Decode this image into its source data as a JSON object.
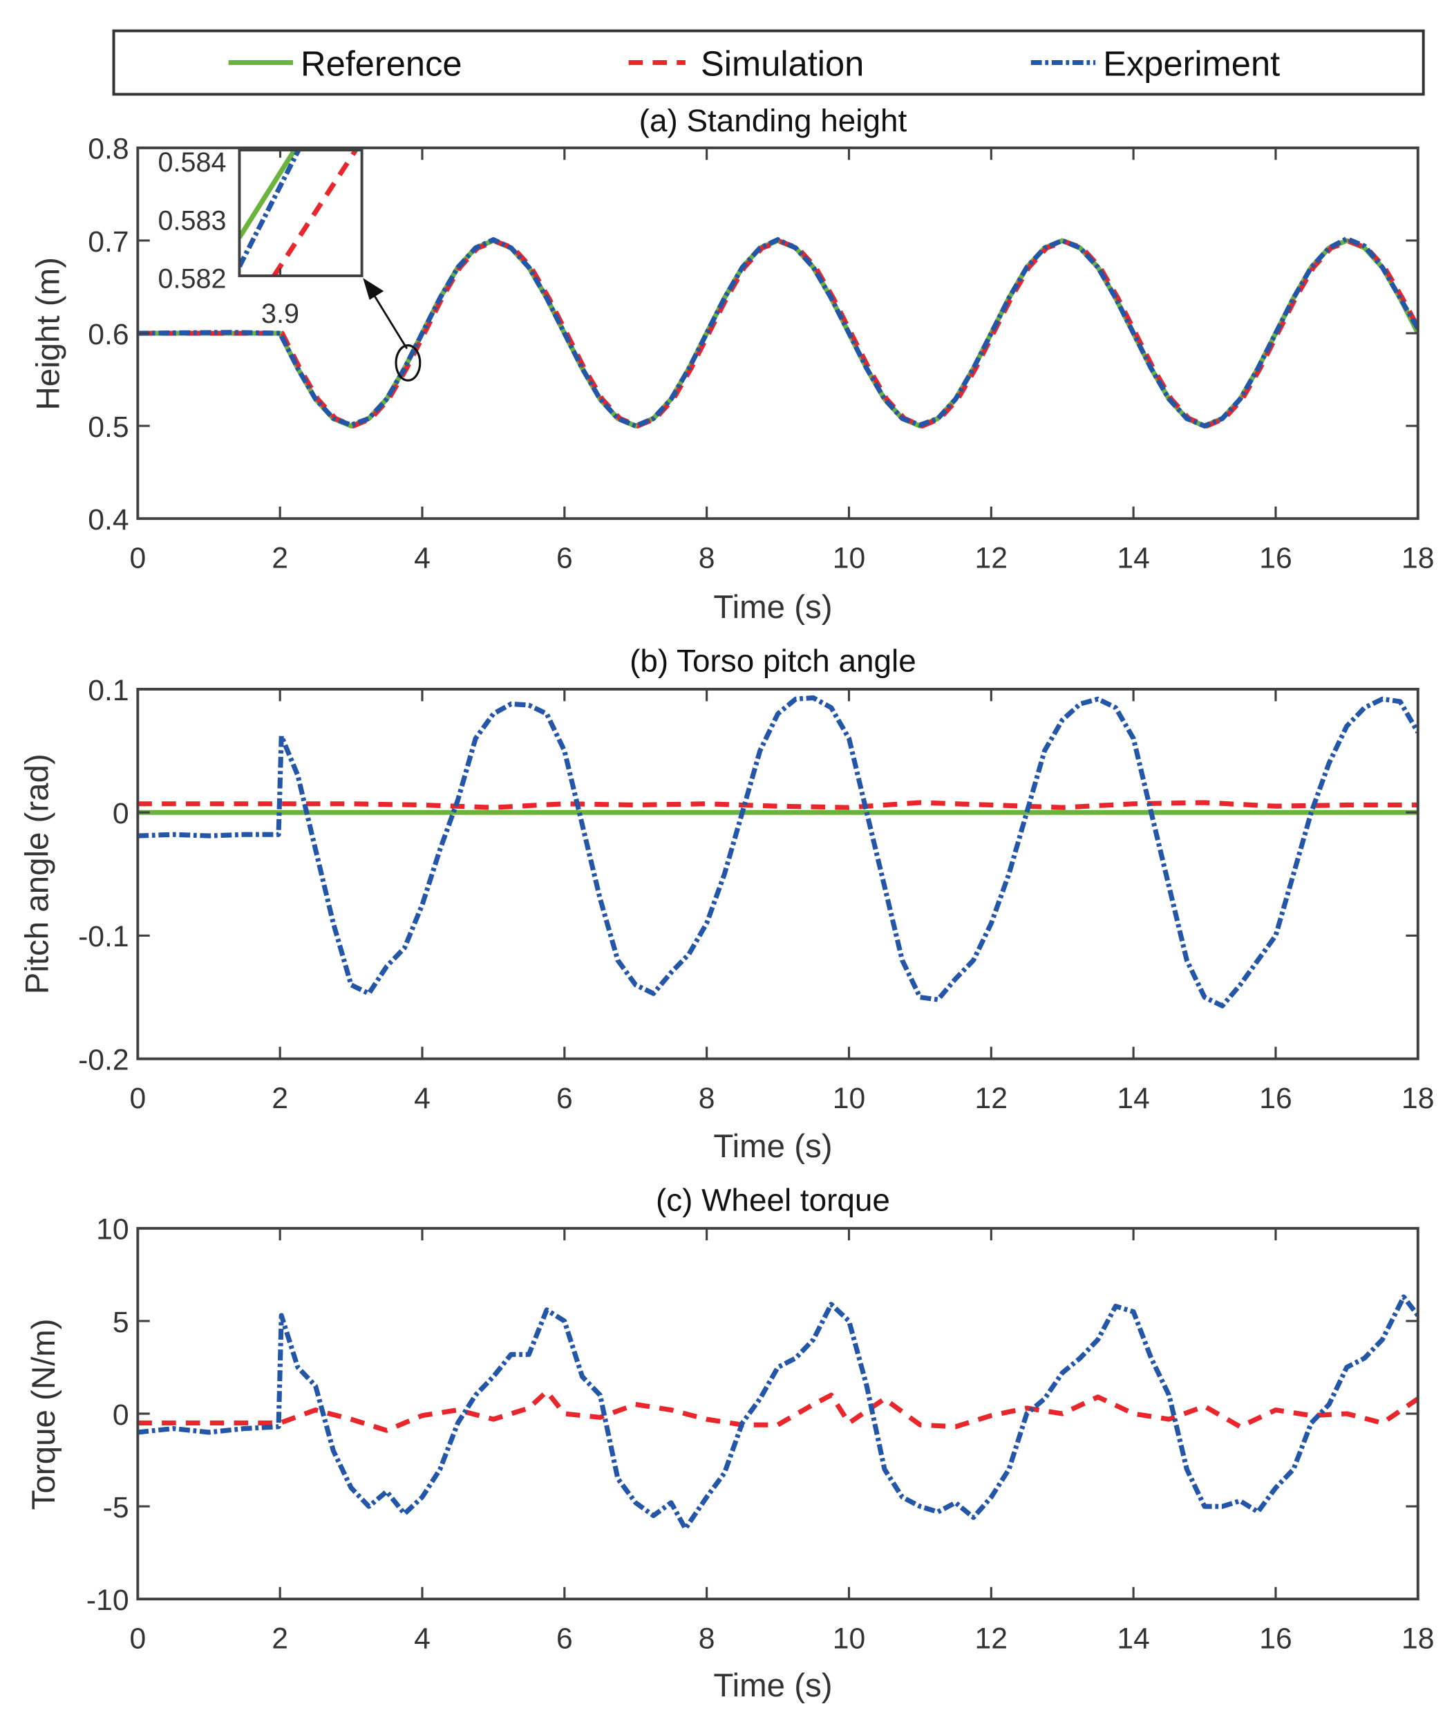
{
  "legend": {
    "items": [
      {
        "label": "Reference",
        "color": "#6ab43e",
        "style": "solid"
      },
      {
        "label": "Simulation",
        "color": "#e8262b",
        "style": "dashed"
      },
      {
        "label": "Experiment",
        "color": "#2456a8",
        "style": "dashdot"
      }
    ]
  },
  "chart_data": [
    {
      "type": "line",
      "title": "(a) Standing height",
      "xlabel": "Time (s)",
      "ylabel": "Height (m)",
      "xlim": [
        0,
        18
      ],
      "ylim": [
        0.4,
        0.8
      ],
      "xticks": [
        "0",
        "2",
        "4",
        "6",
        "8",
        "10",
        "12",
        "14",
        "16",
        "18"
      ],
      "yticks": [
        "0.4",
        "0.5",
        "0.6",
        "0.7",
        "0.8"
      ],
      "series": [
        {
          "name": "Reference",
          "x_start": 2,
          "x_step": 0.25,
          "pre": [
            [
              0,
              0.6
            ],
            [
              2,
              0.6
            ]
          ],
          "y": [
            0.6,
            0.562,
            0.529,
            0.508,
            0.5,
            0.508,
            0.529,
            0.562,
            0.6,
            0.638,
            0.671,
            0.692,
            0.7,
            0.692,
            0.671,
            0.638,
            0.6,
            0.562,
            0.529,
            0.508,
            0.5,
            0.508,
            0.529,
            0.562,
            0.6,
            0.638,
            0.671,
            0.692,
            0.7,
            0.692,
            0.671,
            0.638,
            0.6,
            0.562,
            0.529,
            0.508,
            0.5,
            0.508,
            0.529,
            0.562,
            0.6,
            0.638,
            0.671,
            0.692,
            0.7,
            0.692,
            0.671,
            0.638,
            0.6,
            0.562,
            0.529,
            0.508,
            0.5,
            0.508,
            0.529,
            0.562,
            0.6,
            0.638,
            0.671,
            0.692,
            0.7,
            0.692,
            0.671,
            0.638,
            0.6
          ]
        },
        {
          "name": "Simulation",
          "x_start": 2.03,
          "x_step": 0.25,
          "pre": [
            [
              0,
              0.6
            ],
            [
              2.03,
              0.6
            ]
          ],
          "y": [
            0.6,
            0.562,
            0.529,
            0.508,
            0.5,
            0.508,
            0.529,
            0.562,
            0.6,
            0.638,
            0.671,
            0.692,
            0.699,
            0.692,
            0.671,
            0.638,
            0.6,
            0.562,
            0.529,
            0.508,
            0.5,
            0.508,
            0.529,
            0.562,
            0.6,
            0.638,
            0.671,
            0.692,
            0.699,
            0.692,
            0.671,
            0.638,
            0.6,
            0.562,
            0.529,
            0.508,
            0.5,
            0.508,
            0.529,
            0.562,
            0.6,
            0.638,
            0.671,
            0.692,
            0.699,
            0.692,
            0.671,
            0.638,
            0.6,
            0.562,
            0.529,
            0.508,
            0.5,
            0.508,
            0.529,
            0.562,
            0.6,
            0.638,
            0.671,
            0.692,
            0.699,
            0.692,
            0.671,
            0.638,
            0.602
          ]
        },
        {
          "name": "Experiment",
          "x_start": 2,
          "x_step": 0.25,
          "pre": [
            [
              0,
              0.6
            ],
            [
              1.3,
              0.601
            ],
            [
              2,
              0.6
            ]
          ],
          "y": [
            0.6,
            0.562,
            0.529,
            0.508,
            0.501,
            0.508,
            0.529,
            0.562,
            0.6,
            0.638,
            0.671,
            0.692,
            0.701,
            0.692,
            0.671,
            0.638,
            0.6,
            0.562,
            0.529,
            0.508,
            0.5,
            0.508,
            0.529,
            0.562,
            0.6,
            0.638,
            0.671,
            0.692,
            0.701,
            0.692,
            0.671,
            0.638,
            0.6,
            0.562,
            0.529,
            0.508,
            0.501,
            0.508,
            0.529,
            0.562,
            0.6,
            0.638,
            0.671,
            0.692,
            0.7,
            0.692,
            0.671,
            0.638,
            0.6,
            0.562,
            0.529,
            0.508,
            0.5,
            0.508,
            0.529,
            0.562,
            0.6,
            0.638,
            0.671,
            0.692,
            0.702,
            0.694,
            0.671,
            0.638,
            0.605
          ]
        }
      ],
      "inset": {
        "xlim": [
          3.89,
          3.92
        ],
        "ylim": [
          0.58204,
          0.5842
        ],
        "xticks": [
          "3.9"
        ],
        "yticks": [
          "0.582",
          "0.583",
          "0.584"
        ],
        "series": [
          {
            "name": "Reference",
            "x": [
              3.89,
              3.9035
            ],
            "y": [
              0.5827,
              0.5842
            ]
          },
          {
            "name": "Simulation",
            "x": [
              3.8985,
              3.9185
            ],
            "y": [
              0.58204,
              0.5842
            ]
          },
          {
            "name": "Experiment",
            "x": [
              3.89,
              3.9045
            ],
            "y": [
              0.5822,
              0.5842
            ]
          }
        ],
        "annotation": {
          "type": "arrow-from-ellipse",
          "at_x": 3.8,
          "at_y": 0.568
        }
      }
    },
    {
      "type": "line",
      "title": "(b) Torso pitch angle",
      "xlabel": "Time (s)",
      "ylabel": "Pitch angle (rad)",
      "xlim": [
        0,
        18
      ],
      "ylim": [
        -0.2,
        0.1
      ],
      "xticks": [
        "0",
        "2",
        "4",
        "6",
        "8",
        "10",
        "12",
        "14",
        "16",
        "18"
      ],
      "yticks": [
        "-0.2",
        "-0.1",
        "0",
        "0.1"
      ],
      "series": [
        {
          "name": "Reference",
          "x": [
            0,
            18
          ],
          "y": [
            0,
            0
          ]
        },
        {
          "name": "Simulation",
          "x": [
            0,
            2,
            3,
            4,
            5,
            6,
            7,
            8,
            9,
            10,
            11,
            12,
            13,
            14,
            15,
            16,
            17,
            18
          ],
          "y": [
            0.007,
            0.007,
            0.007,
            0.006,
            0.004,
            0.007,
            0.006,
            0.007,
            0.005,
            0.004,
            0.008,
            0.006,
            0.004,
            0.007,
            0.008,
            0.005,
            0.006,
            0.006
          ]
        },
        {
          "name": "Experiment",
          "x": [
            0,
            0.5,
            1,
            1.5,
            1.98,
            2.02,
            2.25,
            2.5,
            2.75,
            3,
            3.25,
            3.5,
            3.75,
            4,
            4.25,
            4.5,
            4.75,
            5,
            5.25,
            5.5,
            5.75,
            6,
            6.25,
            6.5,
            6.75,
            7,
            7.25,
            7.5,
            7.75,
            8,
            8.25,
            8.5,
            8.75,
            9,
            9.25,
            9.5,
            9.75,
            10,
            10.25,
            10.5,
            10.75,
            11,
            11.25,
            11.5,
            11.75,
            12,
            12.25,
            12.5,
            12.75,
            13,
            13.25,
            13.5,
            13.75,
            14,
            14.25,
            14.5,
            14.75,
            15,
            15.25,
            15.5,
            15.75,
            16,
            16.25,
            16.5,
            16.75,
            17,
            17.25,
            17.5,
            17.75,
            18
          ],
          "y": [
            -0.019,
            -0.018,
            -0.019,
            -0.018,
            -0.018,
            0.062,
            0.03,
            -0.03,
            -0.09,
            -0.14,
            -0.147,
            -0.125,
            -0.11,
            -0.075,
            -0.03,
            0.01,
            0.06,
            0.08,
            0.088,
            0.087,
            0.08,
            0.05,
            -0.01,
            -0.07,
            -0.12,
            -0.14,
            -0.147,
            -0.13,
            -0.115,
            -0.09,
            -0.05,
            0.0,
            0.05,
            0.08,
            0.092,
            0.093,
            0.085,
            0.06,
            0.0,
            -0.06,
            -0.12,
            -0.15,
            -0.152,
            -0.135,
            -0.12,
            -0.09,
            -0.05,
            0.0,
            0.05,
            0.075,
            0.088,
            0.092,
            0.085,
            0.06,
            0.0,
            -0.06,
            -0.12,
            -0.15,
            -0.157,
            -0.14,
            -0.12,
            -0.1,
            -0.05,
            0.0,
            0.04,
            0.07,
            0.085,
            0.092,
            0.09,
            0.065
          ]
        }
      ]
    },
    {
      "type": "line",
      "title": "(c) Wheel torque",
      "xlabel": "Time (s)",
      "ylabel": "Torque (N/m)",
      "xlim": [
        0,
        18
      ],
      "ylim": [
        -10,
        10
      ],
      "xticks": [
        "0",
        "2",
        "4",
        "6",
        "8",
        "10",
        "12",
        "14",
        "16",
        "18"
      ],
      "yticks": [
        "-10",
        "-5",
        "0",
        "5",
        "10"
      ],
      "series": [
        {
          "name": "Simulation",
          "x": [
            0,
            2,
            2.5,
            3,
            3.5,
            4,
            4.5,
            5,
            5.5,
            5.75,
            6,
            6.5,
            7,
            7.5,
            8,
            8.5,
            9,
            9.5,
            9.75,
            10,
            10.5,
            11,
            11.5,
            12,
            12.5,
            13,
            13.5,
            14,
            14.5,
            15,
            15.5,
            16,
            16.5,
            17,
            17.5,
            18
          ],
          "y": [
            -0.5,
            -0.5,
            0.2,
            -0.3,
            -0.9,
            -0.1,
            0.2,
            -0.3,
            0.3,
            1.2,
            0.0,
            -0.2,
            0.5,
            0.2,
            -0.3,
            -0.6,
            -0.6,
            0.5,
            1.0,
            -0.5,
            0.8,
            -0.6,
            -0.7,
            -0.1,
            0.3,
            0.0,
            0.9,
            0.0,
            -0.3,
            0.4,
            -0.7,
            0.2,
            -0.1,
            0.0,
            -0.5,
            0.8
          ]
        },
        {
          "name": "Experiment",
          "x": [
            0,
            0.5,
            1,
            1.5,
            1.98,
            2.02,
            2.25,
            2.5,
            2.75,
            3,
            3.25,
            3.5,
            3.75,
            4,
            4.25,
            4.5,
            4.75,
            5,
            5.25,
            5.5,
            5.75,
            6,
            6.25,
            6.5,
            6.75,
            7,
            7.25,
            7.5,
            7.7,
            8,
            8.25,
            8.5,
            8.75,
            9,
            9.25,
            9.5,
            9.75,
            10,
            10.25,
            10.5,
            10.75,
            11,
            11.25,
            11.5,
            11.75,
            12,
            12.25,
            12.5,
            12.75,
            13,
            13.25,
            13.5,
            13.75,
            14,
            14.25,
            14.5,
            14.75,
            15,
            15.25,
            15.5,
            15.75,
            16,
            16.25,
            16.5,
            16.75,
            17,
            17.25,
            17.5,
            17.8,
            18
          ],
          "y": [
            -1.0,
            -0.8,
            -1.0,
            -0.8,
            -0.7,
            5.3,
            2.5,
            1.5,
            -2.0,
            -4.0,
            -5.0,
            -4.2,
            -5.4,
            -4.5,
            -3.0,
            -0.5,
            1.0,
            2.0,
            3.2,
            3.2,
            5.6,
            5.0,
            2.0,
            1.0,
            -3.5,
            -4.8,
            -5.5,
            -4.8,
            -6.2,
            -4.5,
            -3.2,
            -0.5,
            0.8,
            2.5,
            3.0,
            4.0,
            5.9,
            5.0,
            1.5,
            -3.0,
            -4.5,
            -5.0,
            -5.3,
            -4.8,
            -5.6,
            -4.5,
            -3.0,
            0.0,
            0.8,
            2.2,
            3.0,
            4.0,
            5.8,
            5.5,
            3.0,
            1.0,
            -3.0,
            -5.0,
            -5.0,
            -4.7,
            -5.3,
            -4.0,
            -3.0,
            -0.5,
            0.5,
            2.5,
            3.0,
            4.0,
            6.3,
            5.3
          ]
        }
      ]
    }
  ]
}
